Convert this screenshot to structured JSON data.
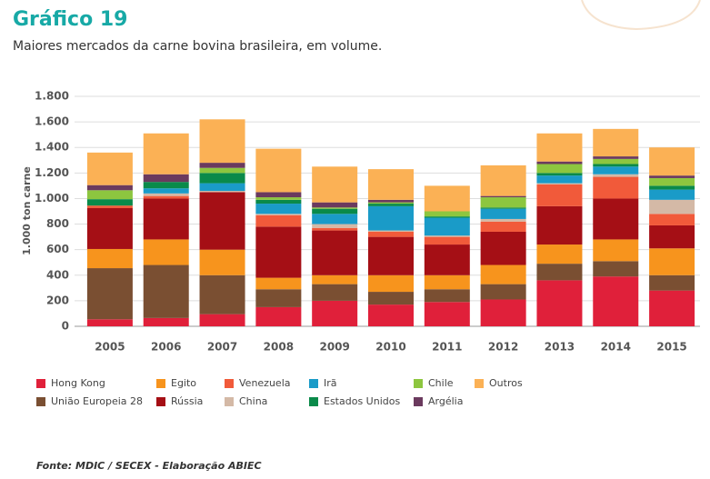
{
  "chart_data": {
    "type": "stacked_bar",
    "title": "Gráfico 19",
    "subtitle": "Maiores mercados da carne bovina brasileira, em volume.",
    "y_label": "1.000 ton carne",
    "source": "Fonte: MDIC / SECEX - Elaboração ABIEC",
    "categories": [
      "2005",
      "2006",
      "2007",
      "2008",
      "2009",
      "2010",
      "2011",
      "2012",
      "2013",
      "2014",
      "2015"
    ],
    "ylim": [
      0,
      1800
    ],
    "yticks": [
      0,
      200,
      400,
      600,
      800,
      {
        "value": 1000,
        "label": "1.000"
      },
      {
        "value": 1200,
        "label": "1.200"
      },
      {
        "value": 1400,
        "label": "1.400"
      },
      {
        "value": 1600,
        "label": "1.600"
      },
      {
        "value": 1800,
        "label": "1.800"
      }
    ],
    "grid": true,
    "series": [
      {
        "name": "Hong Kong",
        "color": "#e0203a",
        "values": [
          55,
          65,
          95,
          150,
          200,
          170,
          190,
          210,
          360,
          390,
          280
        ]
      },
      {
        "name": "União Europeia 28",
        "color": "#7a4f32",
        "values": [
          400,
          415,
          305,
          140,
          130,
          100,
          100,
          120,
          130,
          120,
          120
        ]
      },
      {
        "name": "Egito",
        "color": "#f7941d",
        "values": [
          150,
          200,
          200,
          90,
          70,
          130,
          110,
          150,
          150,
          170,
          210
        ]
      },
      {
        "name": "Rússia",
        "color": "#a50f15",
        "values": [
          320,
          320,
          450,
          400,
          350,
          300,
          240,
          260,
          300,
          320,
          180
        ]
      },
      {
        "name": "Venezuela",
        "color": "#f15a3a",
        "values": [
          20,
          20,
          0,
          90,
          20,
          40,
          60,
          80,
          170,
          170,
          90
        ]
      },
      {
        "name": "China",
        "color": "#d4b9a6",
        "values": [
          0,
          20,
          10,
          10,
          30,
          10,
          10,
          20,
          10,
          20,
          110
        ]
      },
      {
        "name": "Irã",
        "color": "#1a9bc8",
        "values": [
          0,
          40,
          60,
          80,
          80,
          190,
          140,
          80,
          60,
          60,
          80
        ]
      },
      {
        "name": "Estados Unidos",
        "color": "#0a8a4a",
        "values": [
          50,
          50,
          80,
          30,
          40,
          20,
          10,
          10,
          20,
          20,
          30
        ]
      },
      {
        "name": "Chile",
        "color": "#8dc63f",
        "values": [
          70,
          0,
          40,
          20,
          10,
          10,
          40,
          80,
          70,
          40,
          60
        ]
      },
      {
        "name": "Argélia",
        "color": "#6b3a5e",
        "values": [
          40,
          60,
          40,
          40,
          40,
          20,
          0,
          10,
          20,
          20,
          20
        ]
      },
      {
        "name": "Outros",
        "color": "#fbb155",
        "values": [
          255,
          320,
          340,
          340,
          280,
          240,
          200,
          240,
          220,
          215,
          220
        ]
      }
    ]
  }
}
